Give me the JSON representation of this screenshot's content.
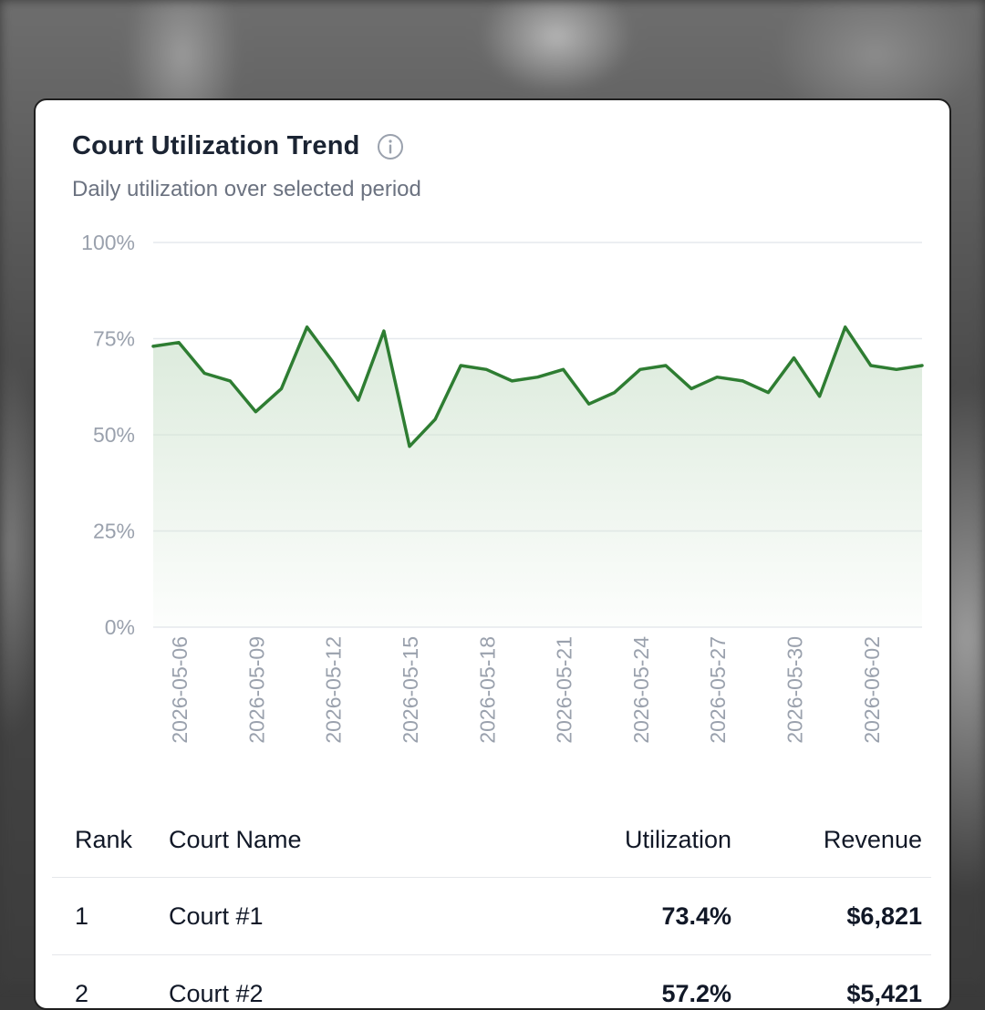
{
  "card": {
    "title": "Court Utilization Trend",
    "subtitle": "Daily utilization over selected period",
    "info_icon": "info-icon"
  },
  "colors": {
    "line": "#2e7d32",
    "area_top": "#cfe3cf",
    "grid": "#e6e9ee",
    "tick": "#9aa1ad"
  },
  "chart_data": {
    "type": "area",
    "title": "Court Utilization Trend",
    "subtitle": "Daily utilization over selected period",
    "xlabel": "",
    "ylabel": "",
    "ylim": [
      0,
      100
    ],
    "yticks": [
      "0%",
      "25%",
      "50%",
      "75%",
      "100%"
    ],
    "ytick_values": [
      0,
      25,
      50,
      75,
      100
    ],
    "xtick_labels": [
      "2026-05-06",
      "2026-05-09",
      "2026-05-12",
      "2026-05-15",
      "2026-05-18",
      "2026-05-21",
      "2026-05-24",
      "2026-05-27",
      "2026-05-30",
      "2026-06-02"
    ],
    "x": [
      "2026-05-05",
      "2026-05-06",
      "2026-05-07",
      "2026-05-08",
      "2026-05-09",
      "2026-05-10",
      "2026-05-11",
      "2026-05-12",
      "2026-05-13",
      "2026-05-14",
      "2026-05-15",
      "2026-05-16",
      "2026-05-17",
      "2026-05-18",
      "2026-05-19",
      "2026-05-20",
      "2026-05-21",
      "2026-05-22",
      "2026-05-23",
      "2026-05-24",
      "2026-05-25",
      "2026-05-26",
      "2026-05-27",
      "2026-05-28",
      "2026-05-29",
      "2026-05-30",
      "2026-05-31",
      "2026-06-01",
      "2026-06-02",
      "2026-06-03",
      "2026-06-04"
    ],
    "values": [
      73,
      74,
      66,
      64,
      56,
      62,
      78,
      69,
      59,
      77,
      47,
      54,
      68,
      67,
      64,
      65,
      67,
      58,
      61,
      67,
      68,
      62,
      65,
      64,
      61,
      70,
      60,
      78,
      68,
      67,
      68
    ],
    "grid": true,
    "legend": "none"
  },
  "table": {
    "headers": [
      "Rank",
      "Court Name",
      "Utilization",
      "Revenue"
    ],
    "rows": [
      [
        "1",
        "Court #1",
        "73.4%",
        "$6,821"
      ],
      [
        "2",
        "Court #2",
        "57.2%",
        "$5,421"
      ]
    ]
  }
}
